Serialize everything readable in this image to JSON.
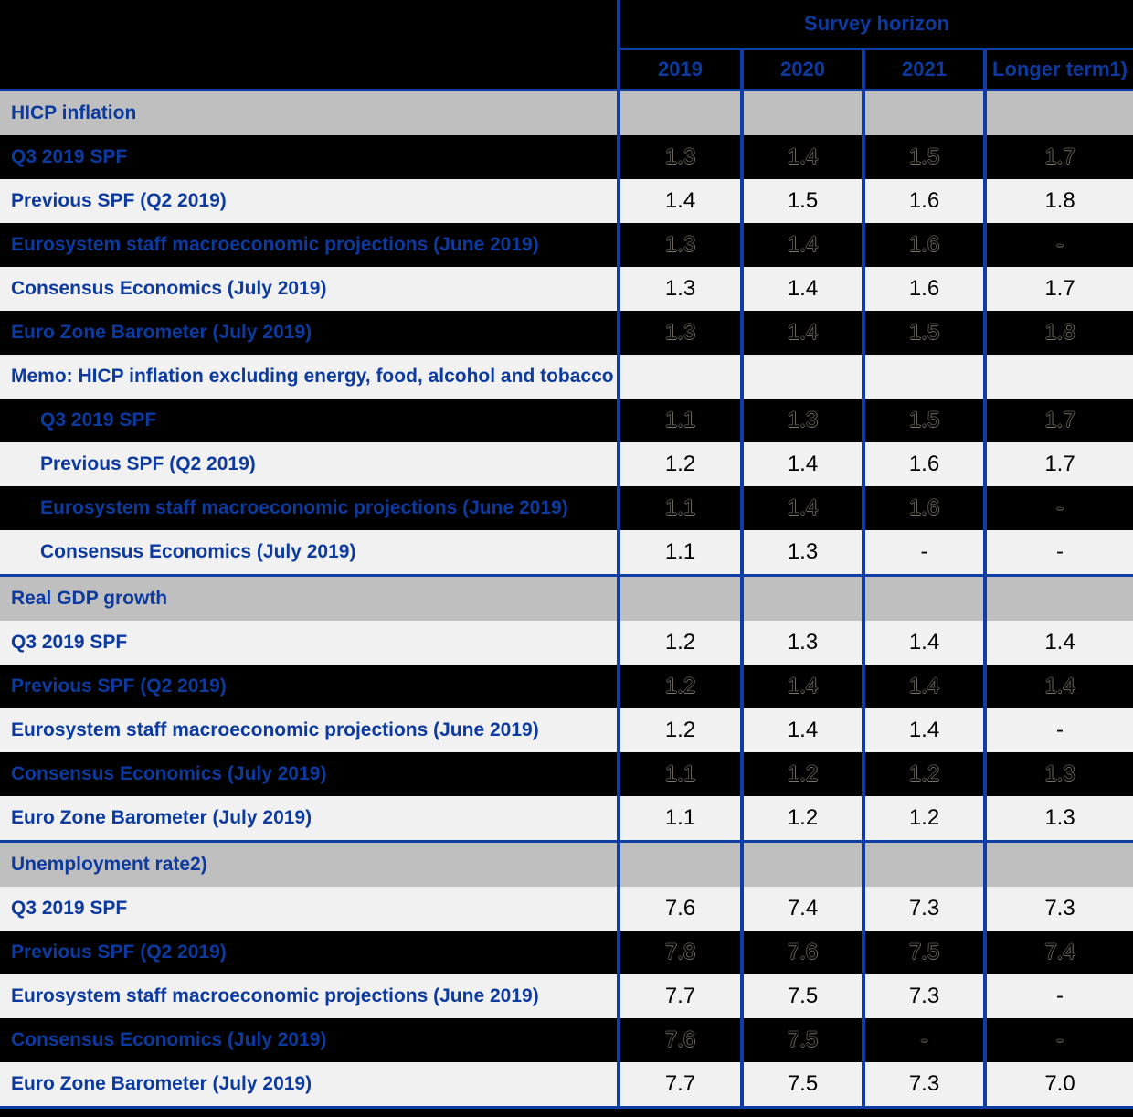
{
  "colors": {
    "line_blue": "#0f3da6",
    "text_blue": "#0c3a9e",
    "section_gray": "#bfbfbf",
    "light_row": "#f1f1f1",
    "dark_row": "#000000"
  },
  "header": {
    "survey_horizon_label": "Survey horizon",
    "columns": [
      "2019",
      "2020",
      "2021",
      "Longer term1)"
    ]
  },
  "table": {
    "sections": [
      {
        "title": "HICP inflation",
        "rows": [
          {
            "label": "Q3 2019 SPF",
            "variant": "dark",
            "indent": false,
            "values": [
              "1.3",
              "1.4",
              "1.5",
              "1.7"
            ]
          },
          {
            "label": "Previous SPF (Q2 2019)",
            "variant": "light",
            "indent": false,
            "values": [
              "1.4",
              "1.5",
              "1.6",
              "1.8"
            ]
          },
          {
            "label": "Eurosystem staff macroeconomic projections (June 2019)",
            "variant": "dark",
            "indent": false,
            "values": [
              "1.3",
              "1.4",
              "1.6",
              "-"
            ]
          },
          {
            "label": "Consensus Economics (July 2019)",
            "variant": "light",
            "indent": false,
            "values": [
              "1.3",
              "1.4",
              "1.6",
              "1.7"
            ]
          },
          {
            "label": "Euro Zone Barometer (July 2019)",
            "variant": "dark",
            "indent": false,
            "values": [
              "1.3",
              "1.4",
              "1.5",
              "1.8"
            ]
          },
          {
            "label": "Memo: HICP inflation excluding energy, food, alcohol and tobacco",
            "variant": "light",
            "indent": false,
            "values": [
              "",
              "",
              "",
              ""
            ]
          },
          {
            "label": "Q3 2019 SPF",
            "variant": "dark",
            "indent": true,
            "values": [
              "1.1",
              "1.3",
              "1.5",
              "1.7"
            ]
          },
          {
            "label": "Previous SPF (Q2 2019)",
            "variant": "light",
            "indent": true,
            "values": [
              "1.2",
              "1.4",
              "1.6",
              "1.7"
            ]
          },
          {
            "label": "Eurosystem staff macroeconomic projections (June 2019)",
            "variant": "dark",
            "indent": true,
            "values": [
              "1.1",
              "1.4",
              "1.6",
              "-"
            ]
          },
          {
            "label": "Consensus Economics (July 2019)",
            "variant": "light",
            "indent": true,
            "values": [
              "1.1",
              "1.3",
              "-",
              "-"
            ]
          }
        ]
      },
      {
        "title": "Real GDP growth",
        "rows": [
          {
            "label": "Q3 2019 SPF",
            "variant": "light",
            "indent": false,
            "values": [
              "1.2",
              "1.3",
              "1.4",
              "1.4"
            ]
          },
          {
            "label": "Previous SPF (Q2 2019)",
            "variant": "dark",
            "indent": false,
            "values": [
              "1.2",
              "1.4",
              "1.4",
              "1.4"
            ]
          },
          {
            "label": "Eurosystem staff macroeconomic projections (June 2019)",
            "variant": "light",
            "indent": false,
            "values": [
              "1.2",
              "1.4",
              "1.4",
              "-"
            ]
          },
          {
            "label": "Consensus Economics (July 2019)",
            "variant": "dark",
            "indent": false,
            "values": [
              "1.1",
              "1.2",
              "1.2",
              "1.3"
            ]
          },
          {
            "label": "Euro Zone Barometer (July 2019)",
            "variant": "light",
            "indent": false,
            "values": [
              "1.1",
              "1.2",
              "1.2",
              "1.3"
            ]
          }
        ]
      },
      {
        "title": "Unemployment rate2)",
        "rows": [
          {
            "label": "Q3 2019 SPF",
            "variant": "light",
            "indent": false,
            "values": [
              "7.6",
              "7.4",
              "7.3",
              "7.3"
            ]
          },
          {
            "label": "Previous SPF (Q2 2019)",
            "variant": "dark",
            "indent": false,
            "values": [
              "7.8",
              "7.6",
              "7.5",
              "7.4"
            ]
          },
          {
            "label": "Eurosystem staff macroeconomic projections (June 2019)",
            "variant": "light",
            "indent": false,
            "values": [
              "7.7",
              "7.5",
              "7.3",
              "-"
            ]
          },
          {
            "label": "Consensus Economics (July 2019)",
            "variant": "dark",
            "indent": false,
            "values": [
              "7.6",
              "7.5",
              "-",
              "-"
            ]
          },
          {
            "label": "Euro Zone Barometer (July 2019)",
            "variant": "light",
            "indent": false,
            "values": [
              "7.7",
              "7.5",
              "7.3",
              "7.0"
            ]
          }
        ]
      }
    ]
  },
  "chart_data": {
    "type": "table",
    "title": "Survey horizon",
    "columns": [
      "2019",
      "2020",
      "2021",
      "Longer term1)"
    ],
    "rows": [
      {
        "section": "HICP inflation",
        "label": "Q3 2019 SPF",
        "values": [
          1.3,
          1.4,
          1.5,
          1.7
        ]
      },
      {
        "section": "HICP inflation",
        "label": "Previous SPF (Q2 2019)",
        "values": [
          1.4,
          1.5,
          1.6,
          1.8
        ]
      },
      {
        "section": "HICP inflation",
        "label": "Eurosystem staff macroeconomic projections (June 2019)",
        "values": [
          1.3,
          1.4,
          1.6,
          null
        ]
      },
      {
        "section": "HICP inflation",
        "label": "Consensus Economics (July 2019)",
        "values": [
          1.3,
          1.4,
          1.6,
          1.7
        ]
      },
      {
        "section": "HICP inflation",
        "label": "Euro Zone Barometer (July 2019)",
        "values": [
          1.3,
          1.4,
          1.5,
          1.8
        ]
      },
      {
        "section": "Memo: HICP inflation excluding energy, food, alcohol and tobacco",
        "label": "Q3 2019 SPF",
        "values": [
          1.1,
          1.3,
          1.5,
          1.7
        ]
      },
      {
        "section": "Memo: HICP inflation excluding energy, food, alcohol and tobacco",
        "label": "Previous SPF (Q2 2019)",
        "values": [
          1.2,
          1.4,
          1.6,
          1.7
        ]
      },
      {
        "section": "Memo: HICP inflation excluding energy, food, alcohol and tobacco",
        "label": "Eurosystem staff macroeconomic projections (June 2019)",
        "values": [
          1.1,
          1.4,
          1.6,
          null
        ]
      },
      {
        "section": "Memo: HICP inflation excluding energy, food, alcohol and tobacco",
        "label": "Consensus Economics (July 2019)",
        "values": [
          1.1,
          1.3,
          null,
          null
        ]
      },
      {
        "section": "Real GDP growth",
        "label": "Q3 2019 SPF",
        "values": [
          1.2,
          1.3,
          1.4,
          1.4
        ]
      },
      {
        "section": "Real GDP growth",
        "label": "Previous SPF (Q2 2019)",
        "values": [
          1.2,
          1.4,
          1.4,
          1.4
        ]
      },
      {
        "section": "Real GDP growth",
        "label": "Eurosystem staff macroeconomic projections (June 2019)",
        "values": [
          1.2,
          1.4,
          1.4,
          null
        ]
      },
      {
        "section": "Real GDP growth",
        "label": "Consensus Economics (July 2019)",
        "values": [
          1.1,
          1.2,
          1.2,
          1.3
        ]
      },
      {
        "section": "Real GDP growth",
        "label": "Euro Zone Barometer (July 2019)",
        "values": [
          1.1,
          1.2,
          1.2,
          1.3
        ]
      },
      {
        "section": "Unemployment rate2)",
        "label": "Q3 2019 SPF",
        "values": [
          7.6,
          7.4,
          7.3,
          7.3
        ]
      },
      {
        "section": "Unemployment rate2)",
        "label": "Previous SPF (Q2 2019)",
        "values": [
          7.8,
          7.6,
          7.5,
          7.4
        ]
      },
      {
        "section": "Unemployment rate2)",
        "label": "Eurosystem staff macroeconomic projections (June 2019)",
        "values": [
          7.7,
          7.5,
          7.3,
          null
        ]
      },
      {
        "section": "Unemployment rate2)",
        "label": "Consensus Economics (July 2019)",
        "values": [
          7.6,
          7.5,
          null,
          null
        ]
      },
      {
        "section": "Unemployment rate2)",
        "label": "Euro Zone Barometer (July 2019)",
        "values": [
          7.7,
          7.5,
          7.3,
          7.0
        ]
      }
    ]
  }
}
